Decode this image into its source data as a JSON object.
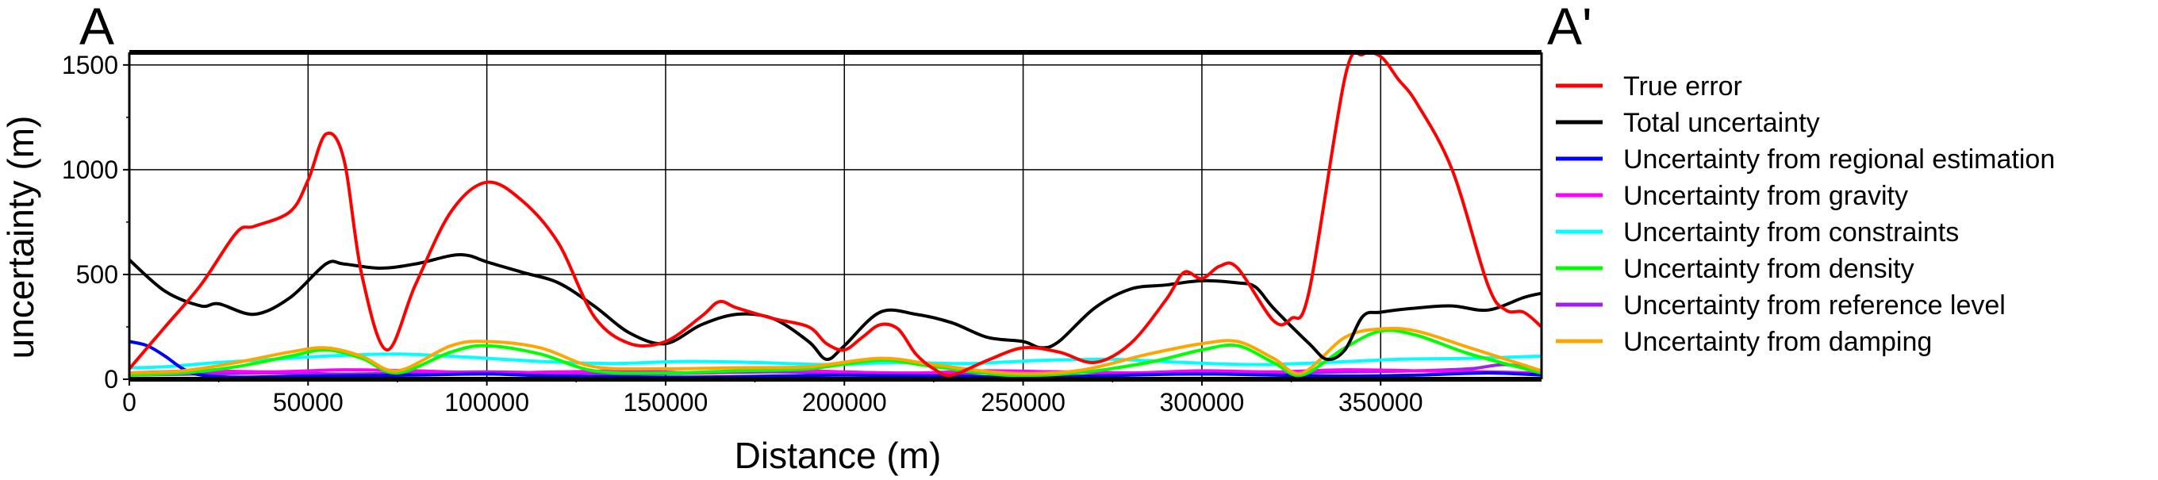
{
  "chart_data": {
    "type": "line",
    "profile_labels": {
      "start": "A",
      "end": "A'"
    },
    "xlabel": "Distance (m)",
    "ylabel": "uncertainty (m)",
    "xlim": [
      0,
      395000
    ],
    "ylim": [
      0,
      1560
    ],
    "x_ticks": [
      0,
      50000,
      100000,
      150000,
      200000,
      250000,
      300000,
      350000
    ],
    "x_tick_labels": [
      "0",
      "50000",
      "100000",
      "150000",
      "200000",
      "250000",
      "300000",
      "350000"
    ],
    "y_ticks": [
      0,
      500,
      1000,
      1500
    ],
    "y_tick_labels": [
      "0",
      "500",
      "1000",
      "1500"
    ],
    "grid": true,
    "legend_position": "outside-right",
    "series": [
      {
        "name": "True error",
        "color": "#ff0000",
        "x": [
          0,
          10000,
          20000,
          30000,
          35000,
          45000,
          50000,
          55000,
          60000,
          65000,
          72000,
          80000,
          90000,
          100000,
          110000,
          120000,
          130000,
          140000,
          150000,
          160000,
          165000,
          170000,
          180000,
          190000,
          195000,
          200000,
          205000,
          210000,
          215000,
          220000,
          225000,
          230000,
          240000,
          250000,
          260000,
          270000,
          280000,
          290000,
          295000,
          300000,
          305000,
          310000,
          320000,
          325000,
          330000,
          340000,
          345000,
          350000,
          355000,
          360000,
          370000,
          380000,
          385000,
          390000,
          395000
        ],
        "values": [
          50,
          250,
          450,
          700,
          730,
          800,
          950,
          1170,
          1050,
          500,
          140,
          450,
          800,
          940,
          850,
          650,
          300,
          170,
          180,
          300,
          370,
          340,
          290,
          250,
          170,
          140,
          200,
          260,
          240,
          120,
          50,
          20,
          90,
          150,
          130,
          80,
          170,
          380,
          510,
          480,
          540,
          530,
          280,
          290,
          420,
          1440,
          1550,
          1540,
          1430,
          1320,
          1000,
          450,
          330,
          320,
          250
        ]
      },
      {
        "name": "Total uncertainty",
        "color": "#000000",
        "x": [
          0,
          10000,
          20000,
          25000,
          35000,
          45000,
          55000,
          60000,
          70000,
          80000,
          90000,
          95000,
          100000,
          110000,
          120000,
          130000,
          140000,
          150000,
          160000,
          170000,
          180000,
          190000,
          195000,
          200000,
          210000,
          220000,
          230000,
          240000,
          250000,
          255000,
          260000,
          270000,
          280000,
          290000,
          300000,
          310000,
          315000,
          320000,
          330000,
          335000,
          340000,
          345000,
          350000,
          360000,
          370000,
          380000,
          390000,
          395000
        ],
        "values": [
          570,
          420,
          350,
          360,
          310,
          390,
          550,
          550,
          530,
          550,
          590,
          590,
          560,
          510,
          460,
          350,
          220,
          170,
          260,
          310,
          290,
          180,
          95,
          160,
          320,
          310,
          270,
          200,
          180,
          150,
          180,
          340,
          430,
          450,
          470,
          460,
          440,
          340,
          170,
          95,
          140,
          300,
          320,
          340,
          350,
          330,
          390,
          410
        ]
      },
      {
        "name": "Uncertainty from regional estimation",
        "color": "#0000ff",
        "x": [
          0,
          5000,
          10000,
          15000,
          20000,
          30000,
          50000,
          80000,
          100000,
          120000,
          150000,
          180000,
          200000,
          230000,
          250000,
          280000,
          300000,
          320000,
          340000,
          360000,
          380000,
          395000
        ],
        "values": [
          180,
          160,
          110,
          50,
          20,
          10,
          15,
          20,
          25,
          15,
          10,
          15,
          20,
          15,
          10,
          20,
          25,
          20,
          15,
          20,
          30,
          20
        ]
      },
      {
        "name": "Uncertainty from gravity",
        "color": "#ff00ff",
        "x": [
          0,
          20000,
          40000,
          60000,
          80000,
          100000,
          120000,
          140000,
          160000,
          180000,
          200000,
          220000,
          240000,
          260000,
          280000,
          300000,
          320000,
          340000,
          360000,
          380000,
          395000
        ],
        "values": [
          30,
          40,
          35,
          45,
          40,
          30,
          35,
          40,
          30,
          45,
          35,
          30,
          40,
          35,
          30,
          40,
          35,
          45,
          40,
          35,
          30
        ]
      },
      {
        "name": "Uncertainty from constraints",
        "color": "#00ffff",
        "x": [
          0,
          10000,
          25000,
          40000,
          55000,
          75000,
          95000,
          115000,
          135000,
          155000,
          175000,
          195000,
          215000,
          235000,
          255000,
          275000,
          295000,
          315000,
          335000,
          355000,
          375000,
          395000
        ],
        "values": [
          55,
          60,
          80,
          95,
          110,
          120,
          105,
          85,
          75,
          85,
          80,
          70,
          80,
          75,
          90,
          95,
          80,
          70,
          80,
          95,
          100,
          110
        ]
      },
      {
        "name": "Uncertainty from density",
        "color": "#00ff00",
        "x": [
          0,
          15000,
          30000,
          45000,
          55000,
          65000,
          75000,
          90000,
          100000,
          115000,
          130000,
          150000,
          170000,
          190000,
          210000,
          225000,
          245000,
          265000,
          285000,
          300000,
          310000,
          320000,
          328000,
          340000,
          350000,
          360000,
          375000,
          395000
        ],
        "values": [
          20,
          30,
          60,
          110,
          140,
          100,
          30,
          130,
          160,
          120,
          40,
          30,
          40,
          50,
          90,
          60,
          20,
          30,
          80,
          140,
          160,
          80,
          20,
          150,
          230,
          210,
          120,
          30
        ]
      },
      {
        "name": "Uncertainty from reference level",
        "color": "#a020f0",
        "x": [
          0,
          20000,
          40000,
          60000,
          80000,
          100000,
          120000,
          140000,
          160000,
          180000,
          200000,
          220000,
          240000,
          260000,
          280000,
          300000,
          320000,
          340000,
          360000,
          375000,
          385000,
          395000
        ],
        "values": [
          20,
          25,
          30,
          25,
          30,
          35,
          30,
          25,
          30,
          35,
          30,
          25,
          30,
          35,
          30,
          25,
          30,
          35,
          40,
          50,
          70,
          40
        ]
      },
      {
        "name": "Uncertainty from damping",
        "color": "#ffa500",
        "x": [
          0,
          15000,
          30000,
          45000,
          55000,
          65000,
          75000,
          90000,
          100000,
          115000,
          130000,
          150000,
          170000,
          190000,
          210000,
          225000,
          245000,
          265000,
          285000,
          300000,
          310000,
          320000,
          328000,
          340000,
          350000,
          360000,
          375000,
          395000
        ],
        "values": [
          30,
          40,
          80,
          130,
          150,
          110,
          40,
          160,
          180,
          150,
          60,
          50,
          55,
          60,
          100,
          70,
          30,
          40,
          120,
          170,
          180,
          100,
          30,
          200,
          240,
          230,
          150,
          40
        ]
      }
    ]
  }
}
